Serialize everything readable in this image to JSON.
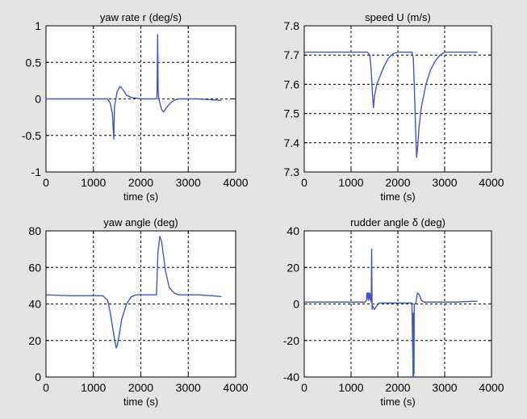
{
  "colors": {
    "figure_bg": "#e4e4e4",
    "axes_bg": "#ffffff",
    "series": "#4455c8",
    "grid": "#000000"
  },
  "chart_data": [
    {
      "type": "line",
      "title": "yaw rate r (deg/s)",
      "xlabel": "time (s)",
      "ylabel": "",
      "xlim": [
        0,
        4000
      ],
      "ylim": [
        -1,
        1
      ],
      "xticks": [
        0,
        1000,
        2000,
        3000,
        4000
      ],
      "yticks": [
        -1,
        -0.5,
        0,
        0.5,
        1
      ],
      "xtick_labels": [
        "0",
        "1000",
        "2000",
        "3000",
        "4000"
      ],
      "ytick_labels": [
        "-1",
        "-0.5",
        "0",
        "0.5",
        "1"
      ],
      "grid": true,
      "series": [
        {
          "x": [
            0,
            1300,
            1350,
            1400,
            1430,
            1445,
            1460,
            1500,
            1560,
            1620,
            1700,
            1800,
            2000,
            2200,
            2320,
            2340,
            2355,
            2365,
            2380,
            2400,
            2440,
            2480,
            2540,
            2620,
            2700,
            2800,
            3000,
            3200,
            3700
          ],
          "y": [
            0,
            0,
            -0.05,
            -0.2,
            -0.55,
            -0.1,
            -0.05,
            0.1,
            0.17,
            0.13,
            0.05,
            0.02,
            0.0,
            0.0,
            0.0,
            0.02,
            0.88,
            0.1,
            0.0,
            -0.05,
            -0.15,
            -0.18,
            -0.12,
            -0.06,
            -0.02,
            0.0,
            0.0,
            0.0,
            -0.02
          ]
        }
      ]
    },
    {
      "type": "line",
      "title": "speed U (m/s)",
      "xlabel": "time (s)",
      "ylabel": "",
      "xlim": [
        0,
        4000
      ],
      "ylim": [
        7.3,
        7.8
      ],
      "xticks": [
        0,
        1000,
        2000,
        3000,
        4000
      ],
      "yticks": [
        7.3,
        7.4,
        7.5,
        7.6,
        7.7,
        7.8
      ],
      "xtick_labels": [
        "0",
        "1000",
        "2000",
        "3000",
        "4000"
      ],
      "ytick_labels": [
        "7.3",
        "7.4",
        "7.5",
        "7.6",
        "7.7",
        "7.8"
      ],
      "grid": true,
      "series": [
        {
          "x": [
            0,
            1350,
            1400,
            1430,
            1460,
            1480,
            1500,
            1550,
            1600,
            1700,
            1800,
            1900,
            2000,
            2300,
            2330,
            2360,
            2380,
            2400,
            2420,
            2450,
            2500,
            2600,
            2700,
            2800,
            2900,
            3000,
            3700
          ],
          "y": [
            7.71,
            7.71,
            7.7,
            7.65,
            7.56,
            7.52,
            7.56,
            7.6,
            7.62,
            7.66,
            7.69,
            7.705,
            7.71,
            7.71,
            7.69,
            7.55,
            7.44,
            7.35,
            7.38,
            7.45,
            7.52,
            7.6,
            7.65,
            7.68,
            7.7,
            7.71,
            7.71
          ]
        }
      ]
    },
    {
      "type": "line",
      "title": "yaw angle (deg)",
      "xlabel": "time (s)",
      "ylabel": "",
      "xlim": [
        0,
        4000
      ],
      "ylim": [
        0,
        80
      ],
      "xticks": [
        0,
        1000,
        2000,
        3000,
        4000
      ],
      "yticks": [
        0,
        20,
        40,
        60,
        80
      ],
      "xtick_labels": [
        "0",
        "1000",
        "2000",
        "3000",
        "4000"
      ],
      "ytick_labels": [
        "0",
        "20",
        "40",
        "60",
        "80"
      ],
      "grid": true,
      "series": [
        {
          "x": [
            0,
            500,
            1000,
            1200,
            1300,
            1350,
            1400,
            1450,
            1480,
            1500,
            1550,
            1600,
            1700,
            1800,
            1900,
            2000,
            2200,
            2330,
            2340,
            2360,
            2400,
            2440,
            2480,
            2520,
            2600,
            2700,
            2800,
            3000,
            3200,
            3500,
            3700
          ],
          "y": [
            45,
            44.5,
            44.5,
            44.5,
            42,
            36,
            28,
            20,
            16,
            17,
            24,
            32,
            40,
            44,
            45,
            45,
            45,
            45,
            52,
            68,
            77,
            74,
            66,
            58,
            49,
            46,
            45,
            45,
            45,
            44.5,
            44
          ]
        }
      ]
    },
    {
      "type": "line",
      "title": "rudder angle δ (deg)",
      "xlabel": "time (s)",
      "ylabel": "",
      "xlim": [
        0,
        4000
      ],
      "ylim": [
        -40,
        40
      ],
      "xticks": [
        0,
        1000,
        2000,
        3000,
        4000
      ],
      "yticks": [
        -40,
        -20,
        0,
        20,
        40
      ],
      "xtick_labels": [
        "0",
        "1000",
        "2000",
        "3000",
        "4000"
      ],
      "ytick_labels": [
        "-40",
        "-20",
        "0",
        "20",
        "40"
      ],
      "grid": true,
      "series": [
        {
          "x": [
            0,
            1000,
            1300,
            1330,
            1340,
            1350,
            1360,
            1370,
            1380,
            1390,
            1400,
            1410,
            1420,
            1430,
            1440,
            1450,
            1460,
            1480,
            1500,
            1550,
            1600,
            1700,
            2000,
            2300,
            2320,
            2325,
            2330,
            2335,
            2340,
            2345,
            2350,
            2360,
            2380,
            2420,
            2460,
            2500,
            2560,
            2650,
            2800,
            3200,
            3700
          ],
          "y": [
            1,
            1,
            1,
            2,
            6,
            3,
            6,
            2,
            6,
            3,
            6,
            2,
            5,
            1,
            30,
            -3,
            -1,
            -2,
            -3,
            -1,
            0.5,
            0.5,
            0.5,
            0.5,
            -30,
            -40,
            -5,
            -40,
            -25,
            -38,
            0,
            0,
            0,
            6,
            5,
            2,
            1,
            1,
            1,
            1,
            1.5
          ]
        }
      ]
    }
  ]
}
